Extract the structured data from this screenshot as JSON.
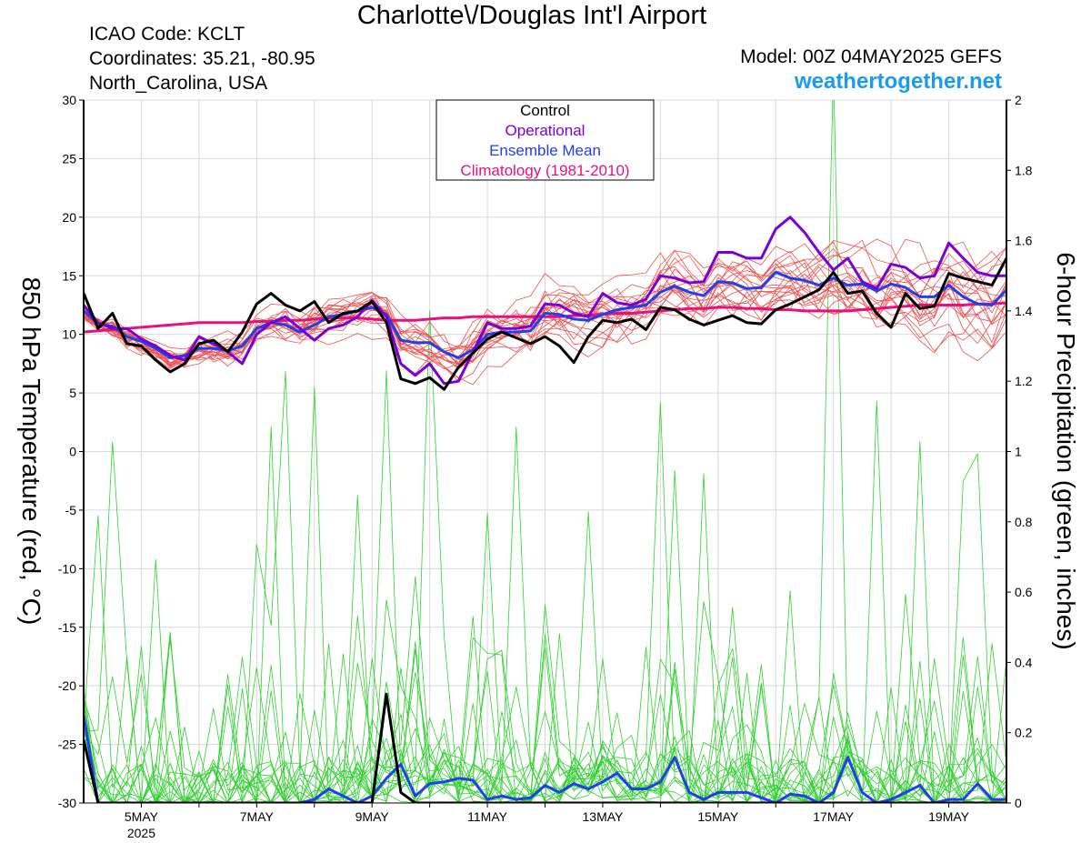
{
  "header": {
    "title": "Charlotte\\/Douglas Int'l Airport",
    "icao": "ICAO Code: KCLT",
    "coordinates": "Coordinates: 35.21, -80.95",
    "region": "North_Carolina, USA",
    "model": "Model: 00Z 04MAY2025 GEFS",
    "site": "weathertogether.net"
  },
  "colors": {
    "control": "#000000",
    "operational": "#7a00d4",
    "ensemble_mean": "#2040e8",
    "climatology": "#e8107a",
    "members_temp": "#f05050",
    "members_precip": "#30d030",
    "site": "#1a9bf0"
  },
  "chart_data": {
    "type": "line",
    "ylabel": "850 hPa Temperature (red, °C)",
    "y2label": "6-hour Precipitation (green, inches)",
    "ylim": [
      -30,
      30
    ],
    "y2lim": [
      0,
      2
    ],
    "yticks": [
      "30",
      "25",
      "20",
      "15",
      "10",
      "5",
      "0",
      "-5",
      "-10",
      "-15",
      "-20",
      "-25",
      "-30"
    ],
    "y2ticks": [
      "2",
      "1.8",
      "1.6",
      "1.4",
      "1.2",
      "1",
      "0.8",
      "0.6",
      "0.4",
      "0.2",
      "0"
    ],
    "xticks": [
      "5MAY",
      "7MAY",
      "9MAY",
      "11MAY",
      "13MAY",
      "15MAY",
      "17MAY",
      "19MAY"
    ],
    "xyear": "2025",
    "legend": {
      "position": "top-center",
      "entries": [
        "Control",
        "Operational",
        "Ensemble Mean",
        "Climatology (1981-2010)"
      ]
    },
    "grid": true,
    "x_days": [
      4.0,
      4.25,
      4.5,
      4.75,
      5.0,
      5.25,
      5.5,
      5.75,
      6.0,
      6.25,
      6.5,
      6.75,
      7.0,
      7.25,
      7.5,
      7.75,
      8.0,
      8.25,
      8.5,
      8.75,
      9.0,
      9.25,
      9.5,
      9.75,
      10.0,
      10.25,
      10.5,
      10.75,
      11.0,
      11.25,
      11.5,
      11.75,
      12.0,
      12.25,
      12.5,
      12.75,
      13.0,
      13.25,
      13.5,
      13.75,
      14.0,
      14.25,
      14.5,
      14.75,
      15.0,
      15.25,
      15.5,
      15.75,
      16.0,
      16.25,
      16.5,
      16.75,
      17.0,
      17.25,
      17.5,
      17.75,
      18.0,
      18.25,
      18.5,
      18.75,
      19.0,
      19.25,
      19.5,
      19.75,
      20.0
    ],
    "series_temp": [
      {
        "name": "Control",
        "values": [
          13.5,
          10.5,
          11.8,
          9.2,
          9.0,
          7.8,
          6.8,
          7.5,
          9.2,
          9.5,
          8.5,
          10.2,
          12.6,
          13.5,
          12.5,
          12.0,
          12.8,
          11.0,
          11.8,
          12.0,
          12.8,
          11.0,
          6.2,
          5.8,
          6.3,
          5.3,
          7.2,
          8.4,
          9.6,
          10.2,
          9.7,
          9.2,
          9.8,
          9.0,
          7.6,
          9.8,
          11.2,
          11.0,
          11.3,
          10.4,
          12.3,
          12.1,
          11.3,
          10.8,
          11.2,
          11.6,
          11.0,
          10.9,
          12.1,
          12.6,
          13.2,
          13.8,
          15.3,
          13.5,
          13.7,
          11.8,
          10.6,
          13.5,
          12.2,
          12.4,
          15.2,
          14.8,
          14.5,
          14.2,
          16.5
        ]
      },
      {
        "name": "Operational",
        "values": [
          12.5,
          11.0,
          10.5,
          10.5,
          9.6,
          9.0,
          8.2,
          7.8,
          9.8,
          9.2,
          8.5,
          7.5,
          10.0,
          11.0,
          11.5,
          10.5,
          9.5,
          10.5,
          10.8,
          11.5,
          12.9,
          11.5,
          7.5,
          6.5,
          7.5,
          5.8,
          6.0,
          8.5,
          11.0,
          10.5,
          10.5,
          10.7,
          12.6,
          12.5,
          11.8,
          11.5,
          13.5,
          12.7,
          12.5,
          13.0,
          15.0,
          14.8,
          14.4,
          14.5,
          17.0,
          17.0,
          16.5,
          16.5,
          19.0,
          20.0,
          18.7,
          17.0,
          15.5,
          16.5,
          14.5,
          13.9,
          16.0,
          15.7,
          14.8,
          15.0,
          17.8,
          16.5,
          15.3,
          15.0,
          15.0
        ]
      },
      {
        "name": "Ensemble Mean",
        "values": [
          12.0,
          10.9,
          10.7,
          9.8,
          9.4,
          8.8,
          8.0,
          8.2,
          8.8,
          8.8,
          8.6,
          9.0,
          10.5,
          11.0,
          10.8,
          10.2,
          10.8,
          11.5,
          11.7,
          12.0,
          12.3,
          11.7,
          9.5,
          9.3,
          9.3,
          8.5,
          8.0,
          8.7,
          10.0,
          10.2,
          10.2,
          10.3,
          11.8,
          11.7,
          11.3,
          11.2,
          11.7,
          12.1,
          12.3,
          12.5,
          13.6,
          14.1,
          13.6,
          13.3,
          14.5,
          14.4,
          13.9,
          14.0,
          15.3,
          14.8,
          14.6,
          14.2,
          14.8,
          14.2,
          14.3,
          13.7,
          14.3,
          14.0,
          13.2,
          13.2,
          14.2,
          13.2,
          12.6,
          12.5,
          13.8
        ]
      },
      {
        "name": "Climatology (1981-2010)",
        "values": [
          10.2,
          10.3,
          10.4,
          10.5,
          10.6,
          10.7,
          10.8,
          10.9,
          11.0,
          11.0,
          11.0,
          11.0,
          11.1,
          11.1,
          11.2,
          11.2,
          11.3,
          11.4,
          11.4,
          11.4,
          11.3,
          11.2,
          11.2,
          11.2,
          11.3,
          11.4,
          11.4,
          11.5,
          11.5,
          11.5,
          11.5,
          11.5,
          11.5,
          11.5,
          11.6,
          11.6,
          11.7,
          11.8,
          11.8,
          11.9,
          12.0,
          12.1,
          12.2,
          12.2,
          12.3,
          12.3,
          12.2,
          12.2,
          12.1,
          12.1,
          12.0,
          12.0,
          12.0,
          12.0,
          12.1,
          12.2,
          12.3,
          12.4,
          12.5,
          12.5,
          12.5,
          12.5,
          12.6,
          12.6,
          12.7
        ]
      }
    ],
    "series_precip": [
      {
        "name": "Control",
        "values": [
          0.18,
          0.0,
          0.0,
          0.0,
          0.0,
          0.0,
          0.0,
          0.0,
          0.0,
          0.0,
          0.0,
          0.0,
          0.0,
          0.0,
          0.0,
          0.0,
          0.0,
          0.0,
          0.0,
          0.0,
          0.0,
          0.31,
          0.03,
          0.0,
          0.0,
          0.0,
          0.0,
          0.0,
          0.0,
          0.0,
          0.0,
          0.0,
          0.0,
          0.0,
          0.0,
          0.0,
          0.0,
          0.0,
          0.0,
          0.0,
          0.0,
          0.0,
          0.0,
          0.0,
          0.0,
          0.0,
          0.0,
          0.0,
          0.0,
          0.0,
          0.0,
          0.0,
          0.0,
          0.0,
          0.0,
          0.0,
          0.0,
          0.0,
          0.0,
          0.0,
          0.0,
          0.0,
          0.0,
          0.0,
          0.0
        ]
      },
      {
        "name": "Ensemble Mean",
        "values": [
          0.25,
          0.0,
          0.0,
          0.0,
          0.0,
          0.0,
          0.0,
          0.0,
          0.0,
          0.0,
          0.0,
          0.0,
          0.0,
          0.0,
          0.0,
          0.0,
          0.01,
          0.04,
          0.02,
          0.0,
          0.02,
          0.07,
          0.11,
          0.02,
          0.055,
          0.06,
          0.07,
          0.065,
          0.01,
          0.02,
          0.01,
          0.015,
          0.05,
          0.03,
          0.055,
          0.04,
          0.06,
          0.085,
          0.04,
          0.04,
          0.06,
          0.13,
          0.03,
          0.01,
          0.03,
          0.03,
          0.03,
          0.015,
          0.0,
          0.025,
          0.02,
          0.0,
          0.03,
          0.13,
          0.03,
          0.0,
          0.01,
          0.03,
          0.05,
          0.0,
          0.01,
          0.01,
          0.055,
          0.01,
          0.01
        ]
      }
    ]
  }
}
